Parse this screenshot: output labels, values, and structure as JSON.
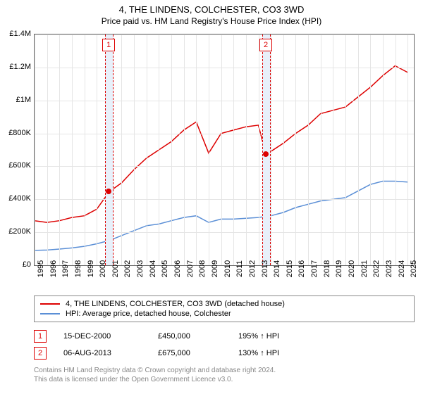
{
  "title": "4, THE LINDENS, COLCHESTER, CO3 3WD",
  "subtitle": "Price paid vs. HM Land Registry's House Price Index (HPI)",
  "chart": {
    "type": "line",
    "background_color": "#ffffff",
    "grid_color": "#e5e5e5",
    "border_color": "#666666",
    "x_years": [
      1995,
      1996,
      1997,
      1998,
      1999,
      2000,
      2001,
      2002,
      2003,
      2004,
      2005,
      2006,
      2007,
      2008,
      2009,
      2010,
      2011,
      2012,
      2013,
      2014,
      2015,
      2016,
      2017,
      2018,
      2019,
      2020,
      2021,
      2022,
      2023,
      2024,
      2025
    ],
    "xlim": [
      1995,
      2025.5
    ],
    "ylim": [
      0,
      1400000
    ],
    "ytick_step": 200000,
    "ytick_labels": [
      "£0",
      "£200K",
      "£400K",
      "£600K",
      "£800K",
      "£1M",
      "£1.2M",
      "£1.4M"
    ],
    "series": [
      {
        "label": "4, THE LINDENS, COLCHESTER, CO3 3WD (detached house)",
        "color": "#dd0000",
        "line_width": 1.5,
        "data": [
          [
            1995,
            270000
          ],
          [
            1996,
            260000
          ],
          [
            1997,
            270000
          ],
          [
            1998,
            290000
          ],
          [
            1999,
            300000
          ],
          [
            2000,
            340000
          ],
          [
            2001,
            445000
          ],
          [
            2002,
            500000
          ],
          [
            2003,
            580000
          ],
          [
            2004,
            650000
          ],
          [
            2005,
            700000
          ],
          [
            2006,
            750000
          ],
          [
            2007,
            820000
          ],
          [
            2008,
            870000
          ],
          [
            2009,
            680000
          ],
          [
            2010,
            800000
          ],
          [
            2011,
            820000
          ],
          [
            2012,
            840000
          ],
          [
            2013,
            850000
          ],
          [
            2013.6,
            675000
          ],
          [
            2014,
            690000
          ],
          [
            2015,
            740000
          ],
          [
            2016,
            800000
          ],
          [
            2017,
            850000
          ],
          [
            2018,
            920000
          ],
          [
            2019,
            940000
          ],
          [
            2020,
            960000
          ],
          [
            2021,
            1020000
          ],
          [
            2022,
            1080000
          ],
          [
            2023,
            1150000
          ],
          [
            2024,
            1210000
          ],
          [
            2025,
            1170000
          ]
        ]
      },
      {
        "label": "HPI: Average price, detached house, Colchester",
        "color": "#5b8fd6",
        "line_width": 1.5,
        "data": [
          [
            1995,
            90000
          ],
          [
            1996,
            92000
          ],
          [
            1997,
            98000
          ],
          [
            1998,
            105000
          ],
          [
            1999,
            115000
          ],
          [
            2000,
            130000
          ],
          [
            2001,
            150000
          ],
          [
            2002,
            180000
          ],
          [
            2003,
            210000
          ],
          [
            2004,
            240000
          ],
          [
            2005,
            250000
          ],
          [
            2006,
            270000
          ],
          [
            2007,
            290000
          ],
          [
            2008,
            300000
          ],
          [
            2009,
            260000
          ],
          [
            2010,
            280000
          ],
          [
            2011,
            280000
          ],
          [
            2012,
            285000
          ],
          [
            2013,
            290000
          ],
          [
            2014,
            300000
          ],
          [
            2015,
            320000
          ],
          [
            2016,
            350000
          ],
          [
            2017,
            370000
          ],
          [
            2018,
            390000
          ],
          [
            2019,
            400000
          ],
          [
            2020,
            410000
          ],
          [
            2021,
            450000
          ],
          [
            2022,
            490000
          ],
          [
            2023,
            510000
          ],
          [
            2024,
            510000
          ],
          [
            2025,
            505000
          ]
        ]
      }
    ],
    "marker_band_color": "#e8f0fa",
    "marker_border_color": "#dd0000",
    "sale_markers": [
      {
        "n": "1",
        "x": 2000.96,
        "y": 450000
      },
      {
        "n": "2",
        "x": 2013.6,
        "y": 675000
      }
    ]
  },
  "sales": [
    {
      "n": "1",
      "date": "15-DEC-2000",
      "price": "£450,000",
      "pct": "195% ↑ HPI"
    },
    {
      "n": "2",
      "date": "06-AUG-2013",
      "price": "£675,000",
      "pct": "130% ↑ HPI"
    }
  ],
  "footer": {
    "line1": "Contains HM Land Registry data © Crown copyright and database right 2024.",
    "line2": "This data is licensed under the Open Government Licence v3.0."
  },
  "fontsize": {
    "title": 13,
    "subtitle": 12,
    "ticks": 11,
    "legend": 11,
    "footer": 10
  }
}
